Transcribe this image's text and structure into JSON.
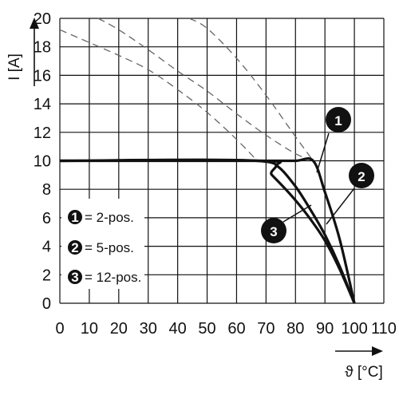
{
  "chart_data": {
    "type": "line",
    "xlabel": "ϑ [°C]",
    "ylabel": "I [A]",
    "xlim": [
      0,
      110
    ],
    "ylim": [
      0,
      20
    ],
    "x_ticks": [
      "0",
      "10",
      "20",
      "30",
      "40",
      "50",
      "60",
      "70",
      "80",
      "90",
      "100",
      "110"
    ],
    "y_ticks": [
      "0",
      "2",
      "4",
      "6",
      "8",
      "10",
      "12",
      "14",
      "16",
      "18",
      "20"
    ],
    "grid": true,
    "legend": [
      {
        "marker": "1",
        "label": "= 2-pos."
      },
      {
        "marker": "2",
        "label": "= 5-pos."
      },
      {
        "marker": "3",
        "label": "= 12-pos."
      }
    ],
    "legend_position": "bottom-left",
    "series": [
      {
        "marker": "1",
        "style": "solid",
        "x": [
          0,
          70,
          80,
          86,
          90,
          95,
          100
        ],
        "y": [
          10,
          10,
          10,
          10,
          7.8,
          4.5,
          0
        ]
      },
      {
        "marker": "2",
        "style": "solid",
        "x": [
          0,
          68,
          74,
          80,
          85,
          90,
          95,
          100
        ],
        "y": [
          10,
          10,
          9.6,
          8.2,
          6.6,
          4.8,
          2.6,
          0
        ]
      },
      {
        "marker": "3",
        "style": "solid",
        "x": [
          0,
          67,
          72,
          78,
          84,
          90,
          95,
          100
        ],
        "y": [
          10,
          10,
          9.0,
          7.7,
          6.2,
          4.4,
          2.4,
          0
        ]
      },
      {
        "marker": "1",
        "style": "dashed",
        "x": [
          44,
          50,
          60,
          70,
          80,
          86
        ],
        "y": [
          20,
          19.3,
          17.2,
          14.6,
          11.7,
          10
        ]
      },
      {
        "marker": "2",
        "style": "dashed",
        "x": [
          13,
          20,
          30,
          40,
          50,
          60,
          70,
          80,
          86
        ],
        "y": [
          20,
          19.2,
          17.8,
          16.3,
          14.9,
          13.3,
          11.8,
          10.5,
          10
        ]
      },
      {
        "marker": "3",
        "style": "dashed",
        "x": [
          0,
          10,
          20,
          30,
          40,
          50,
          60,
          67
        ],
        "y": [
          19.2,
          18.3,
          17.4,
          16.4,
          15.0,
          13.4,
          11.5,
          10
        ]
      }
    ],
    "colors": {
      "lines": "#111111",
      "grid": "#111111",
      "dashed": "#666666"
    }
  }
}
